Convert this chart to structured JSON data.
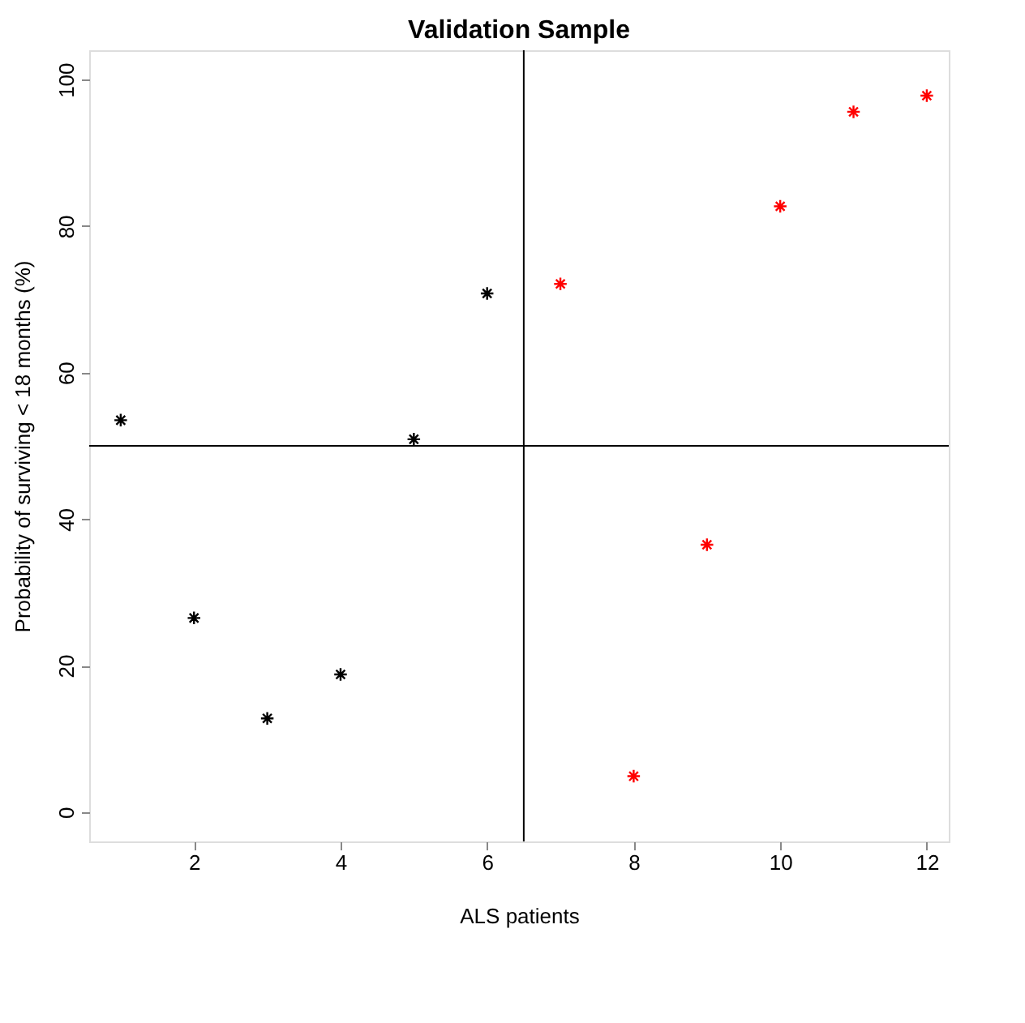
{
  "chart_data": {
    "type": "scatter",
    "title": "Validation Sample",
    "xlabel": "ALS patients",
    "ylabel": "Probability of surviving < 18 months (%)",
    "series": [
      {
        "color": "#000000",
        "x": [
          1,
          2,
          3,
          4,
          5,
          6
        ],
        "values": [
          53.5,
          26.5,
          12.8,
          18.8,
          50.9,
          70.8
        ]
      },
      {
        "color": "#ff0000",
        "x": [
          7,
          8,
          9,
          10,
          11,
          12
        ],
        "values": [
          72.1,
          4.9,
          36.5,
          82.7,
          95.6,
          97.8
        ]
      }
    ],
    "xlim": [
      0.57,
      12.3
    ],
    "xticks": [
      2,
      4,
      6,
      8,
      10,
      12
    ],
    "ylim": [
      -4,
      104
    ],
    "yticks": [
      0,
      20,
      40,
      60,
      80,
      100
    ],
    "ref_lines": [
      {
        "axis": "x",
        "value": 6.5,
        "label": null
      },
      {
        "axis": "y",
        "value": 50,
        "label": null
      }
    ],
    "grid": false,
    "legend": false,
    "marker": "cross"
  }
}
